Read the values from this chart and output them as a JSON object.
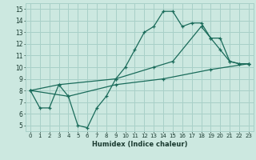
{
  "xlabel": "Humidex (Indice chaleur)",
  "xlim": [
    -0.5,
    23.5
  ],
  "ylim": [
    4.5,
    15.5
  ],
  "yticks": [
    5,
    6,
    7,
    8,
    9,
    10,
    11,
    12,
    13,
    14,
    15
  ],
  "xticks": [
    0,
    1,
    2,
    3,
    4,
    5,
    6,
    7,
    8,
    9,
    10,
    11,
    12,
    13,
    14,
    15,
    16,
    17,
    18,
    19,
    20,
    21,
    22,
    23
  ],
  "background_color": "#cce8e0",
  "grid_color": "#a8d0c8",
  "line_color": "#1a6b5a",
  "line1_x": [
    0,
    1,
    2,
    3,
    4,
    5,
    6,
    7,
    8,
    9,
    10,
    11,
    12,
    13,
    14,
    15,
    16,
    17,
    18,
    19,
    20,
    21,
    22,
    23
  ],
  "line1_y": [
    8.0,
    6.5,
    6.5,
    8.5,
    7.5,
    5.0,
    4.8,
    6.5,
    7.5,
    9.0,
    10.0,
    11.5,
    13.0,
    13.5,
    14.8,
    14.8,
    13.5,
    13.8,
    13.8,
    12.5,
    12.5,
    10.5,
    10.3,
    10.3
  ],
  "line2_x": [
    0,
    3,
    9,
    13,
    15,
    18,
    19,
    20,
    21,
    22,
    23
  ],
  "line2_y": [
    8.0,
    8.5,
    9.0,
    10.0,
    10.5,
    13.5,
    12.5,
    11.5,
    10.5,
    10.3,
    10.3
  ],
  "line3_x": [
    0,
    4,
    9,
    14,
    19,
    23
  ],
  "line3_y": [
    8.0,
    7.5,
    8.5,
    9.0,
    9.8,
    10.3
  ]
}
